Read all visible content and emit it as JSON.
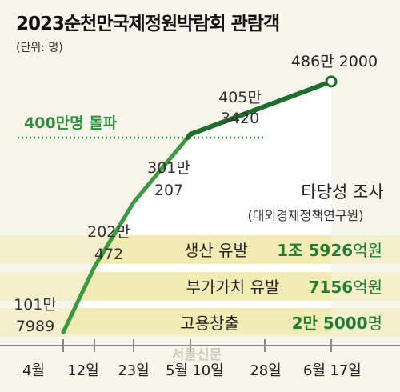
{
  "title": "2023순천만국제정원박람회 관람객",
  "unit": "(단위: 명)",
  "chart_data": {
    "type": "line",
    "x": [
      "4월 1일",
      "4월 12일",
      "4월 23일",
      "5월 10일",
      "5월 28일",
      "6월 17일"
    ],
    "points": [
      {
        "x": "4월 1일",
        "y": 1017989,
        "label_top": "101만",
        "label_bottom": "7989"
      },
      {
        "x": "4월 12일",
        "y": 2020472,
        "label_top": "202만",
        "label_bottom": "472"
      },
      {
        "x": "4월 23일",
        "y": 3010207,
        "label_top": "301만",
        "label_bottom": "207"
      },
      {
        "x": "5월 10일",
        "y": 4053420,
        "label_top": "405만",
        "label_bottom": "3420"
      },
      {
        "x": "6월 17일",
        "y": 4862000,
        "label_top": "486만 2000",
        "label_bottom": ""
      }
    ],
    "ylim": [
      1000000,
      4860000
    ],
    "reference_line": {
      "y": 4000000,
      "label": "400만명 돌파"
    },
    "xaxis": {
      "month_labels": [
        "4월",
        "5월",
        "6월"
      ],
      "day_labels": [
        "12일",
        "23일",
        "10일",
        "28일",
        "17일"
      ]
    },
    "colors": {
      "line_light": "#3b9a3f",
      "line_dark": "#1d6e2c",
      "reference": "#2f8f3a",
      "panel": "#f3ebb4",
      "axis": "#888888"
    }
  },
  "study": {
    "title": "타당성 조사",
    "source": "(대외경제정책연구원)",
    "rows": [
      {
        "label": "생산 유발",
        "value_bold": "1조 5926",
        "value_unit": "억원"
      },
      {
        "label": "부가가치 유발",
        "value_bold": "7156",
        "value_unit": "억원"
      },
      {
        "label": "고용창출",
        "value_bold": "2만 5000",
        "value_unit": "명"
      }
    ]
  },
  "watermark": "서울신문"
}
